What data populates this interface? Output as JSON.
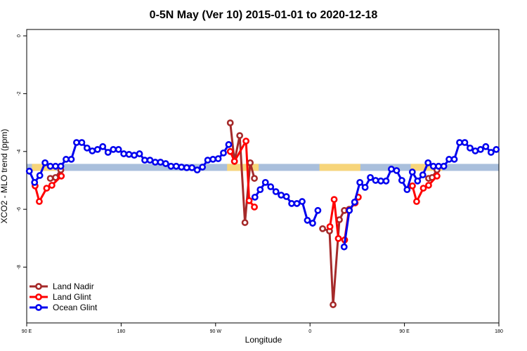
{
  "chart_data": {
    "type": "line",
    "title": "0-5N May (Ver 10)   2015-01-01 to 2020-12-18",
    "x_label": "Longitude",
    "y_label": "XCO2 - MLO trend (ppm)",
    "xlim": [
      90,
      540
    ],
    "ylim": [
      -9.93,
      0.22
    ],
    "xticks": [
      {
        "value": 90,
        "label": "90 E"
      },
      180,
      {
        "value": 270,
        "label": "90 W"
      },
      {
        "value": 360,
        "label": "0"
      },
      {
        "value": 450,
        "label": "90 E"
      },
      {
        "value": 540,
        "label": "180"
      }
    ],
    "yticks": [
      0,
      -2,
      -4,
      -6,
      -8
    ],
    "legend": "bottom-left",
    "band": {
      "value": -4.55,
      "ocean_color": "#a9bfdc",
      "land_color": "#f7d57a",
      "land": [
        [
          95,
          118
        ],
        [
          281,
          311
        ],
        [
          369,
          408
        ],
        [
          456,
          486
        ]
      ]
    },
    "series": [
      {
        "name": "Land Nadir",
        "color": "#a52a2a",
        "x": [
          112.5,
          117.5,
          122.5,
          125,
          284,
          288,
          293,
          298,
          303,
          307,
          340,
          372,
          378.6,
          382,
          388,
          392.7,
          397.3,
          430,
          473,
          476.4,
          481
        ],
        "values": [
          -4.93,
          -4.9,
          -4.64,
          null,
          -3.01,
          -4.34,
          -3.45,
          -6.46,
          -4.39,
          -4.93,
          null,
          -6.67,
          -6.75,
          -9.3,
          -6.36,
          -6.04,
          -6.0,
          null,
          -4.93,
          -4.9,
          -4.64
        ]
      },
      {
        "name": "Land Glint",
        "color": "#ff0000",
        "x": [
          98,
          102,
          109,
          114,
          123,
          200,
          284,
          288,
          299,
          302,
          307,
          340,
          379,
          383,
          387,
          393,
          397,
          403,
          406,
          430,
          457.6,
          461.6,
          468,
          473,
          481
        ],
        "values": [
          -5.19,
          -5.73,
          -5.27,
          -5.17,
          -4.85,
          null,
          -4.0,
          -4.34,
          -3.64,
          -5.7,
          -5.92,
          null,
          -6.6,
          -5.66,
          -7.01,
          -7.06,
          -6.04,
          -5.78,
          -5.58,
          null,
          -5.19,
          -5.73,
          -5.27,
          -5.17,
          -4.85
        ]
      },
      {
        "name": "Ocean Glint",
        "color": "#0000ee",
        "x": [
          92.5,
          97.5,
          102.5,
          107.5,
          112.5,
          117.5,
          122.5,
          127.5,
          132.5,
          137.5,
          142.5,
          147.5,
          152.5,
          157.5,
          162.5,
          167.5,
          172.5,
          177.5,
          182.5,
          187.5,
          192.5,
          197.5,
          202.5,
          207.5,
          212.5,
          217.5,
          222.5,
          227.5,
          232.5,
          237.5,
          242.5,
          247.5,
          252.5,
          257.5,
          262.5,
          267.5,
          272.5,
          277.5,
          282.5,
          287.5,
          307.5,
          312.5,
          317.5,
          322.5,
          327.5,
          332.5,
          337.5,
          342.5,
          347.5,
          352.5,
          357.5,
          362.5,
          367.5,
          372.5,
          392.5,
          397.5,
          402.5,
          407.5,
          412.5,
          417.5,
          422.5,
          427.5,
          432.5,
          437.5,
          442.5,
          447.5,
          452.5,
          457.5,
          462.5,
          467.5,
          472.5,
          477.5,
          482.5,
          487.5,
          492.5,
          497.5,
          502.5,
          507.5,
          512.5,
          517.5,
          522.5,
          527.5,
          532.5,
          537.5
        ],
        "values": [
          -4.68,
          -5.07,
          -4.83,
          -4.39,
          -4.51,
          -4.51,
          -4.51,
          -4.27,
          -4.27,
          -3.69,
          -3.69,
          -3.88,
          -3.98,
          -3.93,
          -3.83,
          -4.03,
          -3.93,
          -3.93,
          -4.08,
          -4.1,
          -4.13,
          -4.08,
          -4.3,
          -4.3,
          -4.37,
          -4.37,
          -4.42,
          -4.51,
          -4.51,
          -4.54,
          -4.56,
          -4.56,
          -4.64,
          -4.54,
          -4.3,
          -4.27,
          -4.25,
          -4.05,
          -3.76,
          null,
          -5.58,
          -5.32,
          -5.07,
          -5.22,
          -5.39,
          -5.51,
          -5.56,
          -5.8,
          -5.8,
          -5.73,
          -6.38,
          -6.48,
          -6.04,
          null,
          -7.3,
          -6.04,
          -5.75,
          -5.07,
          -5.24,
          -4.9,
          -5.0,
          -5.02,
          -5.02,
          -4.61,
          -4.66,
          -5.0,
          -5.32,
          -4.71,
          -5.02,
          -4.81,
          -4.39,
          -4.51,
          -4.51,
          -4.51,
          -4.27,
          -4.27,
          -3.69,
          -3.69,
          -3.88,
          -3.98,
          -3.93,
          -3.83,
          -4.03,
          -3.93
        ]
      }
    ]
  }
}
